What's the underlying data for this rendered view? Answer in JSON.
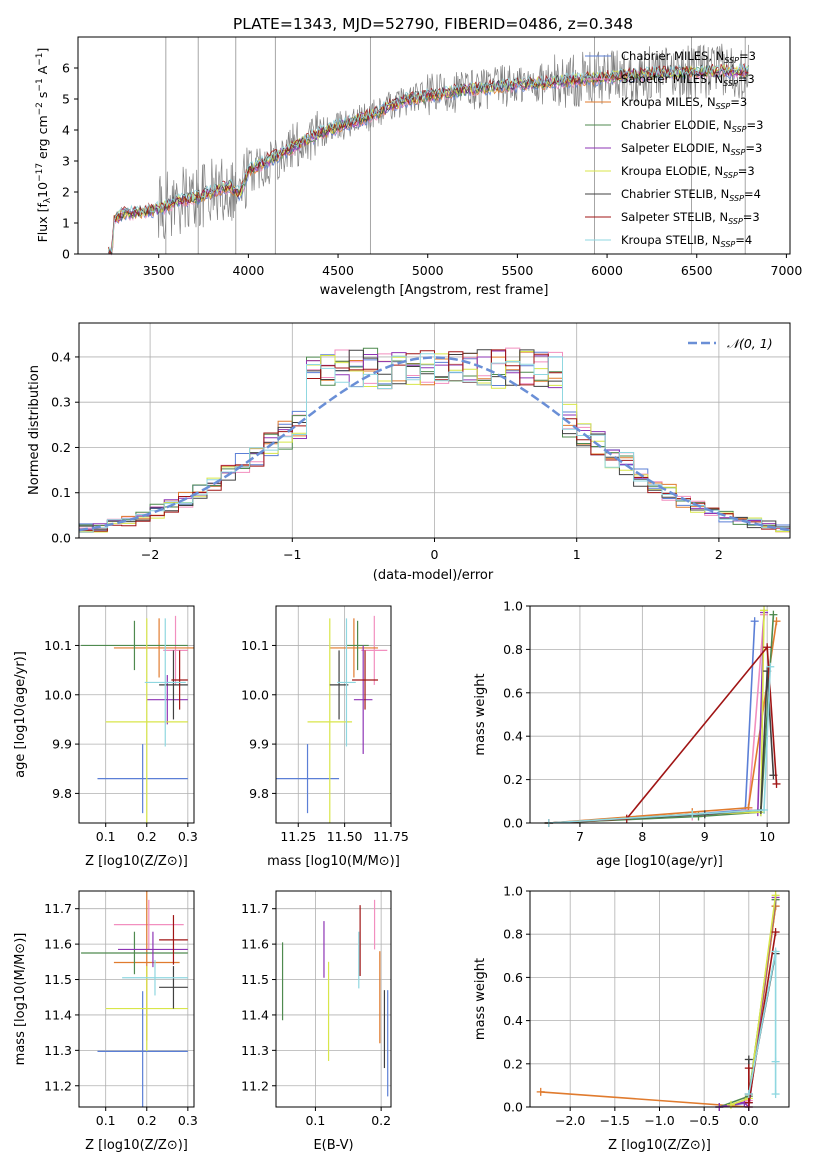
{
  "colors": {
    "chabrier_miles": "#5b7fd6",
    "salpeter_miles": "#f28fbf",
    "kroupa_miles": "#e07b2e",
    "chabrier_elodie": "#4f8a4f",
    "salpeter_elodie": "#8e35b5",
    "kroupa_elodie": "#d8e64a",
    "chabrier_stelib": "#404040",
    "salpeter_stelib": "#a01515",
    "kroupa_stelib": "#8fd7e0",
    "data": "#808080",
    "gauss": "#6a8fd6",
    "grid": "#b0b0b0"
  },
  "chart_data": [
    {
      "id": "spectrum",
      "type": "line",
      "title": "PLATE=1343, MJD=52790, FIBERID=0486, z=0.348",
      "xlabel": "wavelength [Angstrom, rest frame]",
      "ylabel": "Flux [fλ10⁻¹⁷ erg cm⁻² s⁻¹ A⁻¹]",
      "xlim": [
        3050,
        7020
      ],
      "ylim": [
        0,
        7.0
      ],
      "xticks": [
        3500,
        4000,
        4500,
        5000,
        5500,
        6000,
        6500,
        7000
      ],
      "yticks": [
        0,
        1,
        2,
        3,
        4,
        5,
        6
      ],
      "legend_position": "top-right",
      "legend": [
        "Chabrier MILES, NSSP=3",
        "Salpeter MILES, NSSP=3",
        "Kroupa MILES, NSSP=3",
        "Chabrier ELODIE, NSSP=3",
        "Salpeter ELODIE, NSSP=3",
        "Kroupa ELODIE, NSSP=3",
        "Chabrier STELIB, NSSP=4",
        "Salpeter STELIB, NSSP=3",
        "Kroupa STELIB, NSSP=4"
      ],
      "continuum": {
        "x": [
          3220,
          3240,
          3250,
          3300,
          3400,
          3500,
          3600,
          3700,
          3800,
          3900,
          3950,
          4000,
          4100,
          4200,
          4300,
          4400,
          4500,
          4600,
          4700,
          4800,
          4900,
          5000,
          5200,
          5400,
          5600,
          5800,
          6000,
          6200,
          6400,
          6600,
          6780
        ],
        "y": [
          0,
          0,
          1.1,
          1.3,
          1.35,
          1.45,
          1.7,
          1.8,
          2.0,
          2.2,
          1.9,
          2.7,
          3.0,
          3.3,
          3.6,
          3.9,
          4.1,
          4.3,
          4.5,
          4.8,
          5.0,
          5.1,
          5.3,
          5.4,
          5.5,
          5.6,
          5.7,
          5.8,
          5.85,
          5.9,
          5.9
        ]
      }
    },
    {
      "id": "residuals",
      "type": "line",
      "xlabel": "(data-model)/error",
      "ylabel": "Normed distribution",
      "xlim": [
        -2.5,
        2.5
      ],
      "ylim": [
        0,
        0.475
      ],
      "xticks": [
        -2,
        -1,
        0,
        1,
        2
      ],
      "yticks": [
        0.0,
        0.1,
        0.2,
        0.3,
        0.4
      ],
      "legend": [
        "𝒩(0, 1)"
      ],
      "legend_position": "top-right",
      "bin_width": 0.1,
      "bin_start": -2.5
    },
    {
      "id": "age_vs_Z",
      "type": "scatter",
      "xlabel": "Z [log10(Z/Z⊙)]",
      "ylabel": "age  [log10(age/yr)]",
      "xlim": [
        0.035,
        0.315
      ],
      "ylim": [
        9.74,
        10.18
      ],
      "xticks": [
        0.1,
        0.2,
        0.3
      ],
      "yticks": [
        9.8,
        9.9,
        10.0,
        10.1
      ],
      "ticklabels_x": [
        "0.1",
        "0.2",
        "0.3"
      ],
      "ticklabels_y": [
        "9.8",
        "9.9",
        "10.0",
        "10.1"
      ],
      "points": [
        {
          "series": "chabrier_miles",
          "x": 0.19,
          "y": 9.83,
          "xerr": 0.11,
          "yerr": 0.07
        },
        {
          "series": "salpeter_miles",
          "x": 0.27,
          "y": 10.09,
          "xerr": 0.03,
          "yerr": 0.07
        },
        {
          "series": "kroupa_miles",
          "x": 0.23,
          "y": 10.095,
          "xerr": 0.11,
          "yerr": 0.06
        },
        {
          "series": "chabrier_elodie",
          "x": 0.17,
          "y": 10.1,
          "xerr": 0.13,
          "yerr": 0.05
        },
        {
          "series": "salpeter_elodie",
          "x": 0.25,
          "y": 9.99,
          "xerr": 0.05,
          "yerr": 0.05
        },
        {
          "series": "kroupa_elodie",
          "x": 0.2,
          "y": 9.945,
          "xerr": 0.1,
          "yerr": 0.21
        },
        {
          "series": "chabrier_stelib",
          "x": 0.265,
          "y": 10.02,
          "xerr": 0.035,
          "yerr": 0.07
        },
        {
          "series": "salpeter_stelib",
          "x": 0.28,
          "y": 10.03,
          "xerr": 0.02,
          "yerr": 0.06
        },
        {
          "series": "kroupa_stelib",
          "x": 0.245,
          "y": 10.025,
          "xerr": 0.05,
          "yerr": 0.13
        }
      ]
    },
    {
      "id": "age_vs_mass",
      "type": "scatter",
      "xlabel": "mass [log10(M/M⊙)]",
      "xlim": [
        11.13,
        11.75
      ],
      "ylim": [
        9.74,
        10.18
      ],
      "xticks": [
        11.25,
        11.5,
        11.75
      ],
      "yticks": [
        9.8,
        9.9,
        10.0,
        10.1
      ],
      "ticklabels_x": [
        "11.25",
        "11.50",
        "11.75"
      ],
      "ticklabels_y": [
        "9.8",
        "9.9",
        "10.0",
        "10.1"
      ],
      "points": [
        {
          "series": "chabrier_miles",
          "x": 11.3,
          "y": 9.83,
          "xerr": 0.17,
          "yerr": 0.07
        },
        {
          "series": "salpeter_miles",
          "x": 11.66,
          "y": 10.09,
          "xerr": 0.07,
          "yerr": 0.07
        },
        {
          "series": "kroupa_miles",
          "x": 11.55,
          "y": 10.095,
          "xerr": 0.13,
          "yerr": 0.06
        },
        {
          "series": "chabrier_elodie",
          "x": 11.57,
          "y": 10.1,
          "xerr": 0.06,
          "yerr": 0.05
        },
        {
          "series": "salpeter_elodie",
          "x": 11.6,
          "y": 9.99,
          "xerr": 0.05,
          "yerr": 0.11
        },
        {
          "series": "kroupa_elodie",
          "x": 11.42,
          "y": 9.945,
          "xerr": 0.12,
          "yerr": 0.21
        },
        {
          "series": "chabrier_stelib",
          "x": 11.47,
          "y": 10.02,
          "xerr": 0.05,
          "yerr": 0.07
        },
        {
          "series": "salpeter_stelib",
          "x": 11.61,
          "y": 10.03,
          "xerr": 0.07,
          "yerr": 0.06
        },
        {
          "series": "kroupa_stelib",
          "x": 11.51,
          "y": 10.025,
          "xerr": 0.05,
          "yerr": 0.13
        }
      ]
    },
    {
      "id": "massweight_vs_age",
      "type": "line",
      "xlabel": "age  [log10(age/yr)]",
      "ylabel": "mass weight",
      "xlim": [
        6.2,
        10.35
      ],
      "ylim": [
        0,
        1.0
      ],
      "xticks": [
        7,
        8,
        9,
        10
      ],
      "yticks": [
        0.0,
        0.2,
        0.4,
        0.6,
        0.8,
        1.0
      ],
      "ticklabels_x": [
        "7",
        "8",
        "9",
        "10"
      ],
      "ticklabels_y": [
        "0.0",
        "0.2",
        "0.4",
        "0.6",
        "0.8",
        "1.0"
      ],
      "series": [
        {
          "key": "chabrier_miles",
          "x": [
            6.5,
            8.8,
            9.65,
            9.8
          ],
          "y": [
            0.0,
            0.04,
            0.06,
            0.93
          ]
        },
        {
          "key": "salpeter_miles",
          "x": [
            6.5,
            8.8,
            9.7,
            9.95
          ],
          "y": [
            0.0,
            0.03,
            0.06,
            0.96
          ]
        },
        {
          "key": "kroupa_miles",
          "x": [
            6.5,
            8.8,
            9.7,
            10.15
          ],
          "y": [
            0.0,
            0.05,
            0.07,
            0.93
          ]
        },
        {
          "key": "chabrier_elodie",
          "x": [
            6.5,
            8.9,
            9.9,
            10.1
          ],
          "y": [
            0.0,
            0.03,
            0.05,
            0.96
          ]
        },
        {
          "key": "salpeter_elodie",
          "x": [
            6.5,
            8.8,
            9.85,
            9.95
          ],
          "y": [
            0.0,
            0.04,
            0.05,
            0.97
          ]
        },
        {
          "key": "kroupa_elodie",
          "x": [
            6.5,
            8.8,
            9.9,
            9.95
          ],
          "y": [
            0.0,
            0.04,
            0.05,
            0.98
          ]
        },
        {
          "key": "chabrier_stelib",
          "x": [
            6.5,
            9.0,
            9.9,
            10.0,
            10.1
          ],
          "y": [
            0.0,
            0.04,
            0.06,
            0.7,
            0.22
          ]
        },
        {
          "key": "salpeter_stelib",
          "x": [
            6.5,
            7.75,
            10.0,
            10.15
          ],
          "y": [
            0.0,
            0.02,
            0.81,
            0.18
          ]
        },
        {
          "key": "kroupa_stelib",
          "x": [
            6.5,
            8.8,
            9.95,
            10.05
          ],
          "y": [
            0.0,
            0.04,
            0.06,
            0.72
          ]
        }
      ]
    },
    {
      "id": "mass_vs_Z",
      "type": "scatter",
      "xlabel": "Z [log10(Z/Z⊙)]",
      "ylabel": "mass [log10(M/M⊙)]",
      "xlim": [
        0.035,
        0.315
      ],
      "ylim": [
        11.14,
        11.75
      ],
      "xticks": [
        0.1,
        0.2,
        0.3
      ],
      "yticks": [
        11.2,
        11.3,
        11.4,
        11.5,
        11.6,
        11.7
      ],
      "ticklabels_x": [
        "0.1",
        "0.2",
        "0.3"
      ],
      "ticklabels_y": [
        "11.2",
        "11.3",
        "11.4",
        "11.5",
        "11.6",
        "11.7"
      ],
      "points": [
        {
          "series": "chabrier_miles",
          "x": 0.19,
          "y": 11.297,
          "xerr": 0.11,
          "yerr": 0.17
        },
        {
          "series": "salpeter_miles",
          "x": 0.205,
          "y": 11.655,
          "xerr": 0.085,
          "yerr": 0.07
        },
        {
          "series": "kroupa_miles",
          "x": 0.2,
          "y": 11.548,
          "xerr": 0.08,
          "yerr": 0.22
        },
        {
          "series": "chabrier_elodie",
          "x": 0.17,
          "y": 11.575,
          "xerr": 0.13,
          "yerr": 0.06
        },
        {
          "series": "salpeter_elodie",
          "x": 0.215,
          "y": 11.585,
          "xerr": 0.085,
          "yerr": 0.05
        },
        {
          "series": "kroupa_elodie",
          "x": 0.2,
          "y": 11.418,
          "xerr": 0.1,
          "yerr": 0.12
        },
        {
          "series": "chabrier_stelib",
          "x": 0.265,
          "y": 11.478,
          "xerr": 0.035,
          "yerr": 0.06
        },
        {
          "series": "salpeter_stelib",
          "x": 0.265,
          "y": 11.612,
          "xerr": 0.035,
          "yerr": 0.07
        },
        {
          "series": "kroupa_stelib",
          "x": 0.22,
          "y": 11.505,
          "xerr": 0.08,
          "yerr": 0.05
        }
      ]
    },
    {
      "id": "mass_vs_ebv",
      "type": "scatter",
      "xlabel": "E(B-V)",
      "xlim": [
        0.04,
        0.215
      ],
      "ylim": [
        11.14,
        11.75
      ],
      "xticks": [
        0.1,
        0.2
      ],
      "yticks": [
        11.2,
        11.3,
        11.4,
        11.5,
        11.6,
        11.7
      ],
      "ticklabels_x": [
        "0.1",
        "0.2"
      ],
      "ticklabels_y": [
        "11.2",
        "11.3",
        "11.4",
        "11.5",
        "11.6",
        "11.7"
      ],
      "points": [
        {
          "series": "chabrier_miles",
          "x": 0.21,
          "y": 11.32,
          "yerr": 0.15
        },
        {
          "series": "salpeter_miles",
          "x": 0.19,
          "y": 11.655,
          "yerr": 0.07
        },
        {
          "series": "kroupa_miles",
          "x": 0.198,
          "y": 11.45,
          "yerr": 0.13
        },
        {
          "series": "chabrier_elodie",
          "x": 0.05,
          "y": 11.495,
          "yerr": 0.11
        },
        {
          "series": "salpeter_elodie",
          "x": 0.113,
          "y": 11.585,
          "yerr": 0.08
        },
        {
          "series": "kroupa_elodie",
          "x": 0.12,
          "y": 11.41,
          "yerr": 0.14
        },
        {
          "series": "chabrier_stelib",
          "x": 0.205,
          "y": 11.36,
          "yerr": 0.11
        },
        {
          "series": "salpeter_stelib",
          "x": 0.168,
          "y": 11.61,
          "yerr": 0.1
        },
        {
          "series": "kroupa_stelib",
          "x": 0.166,
          "y": 11.555,
          "yerr": 0.08
        }
      ]
    },
    {
      "id": "massweight_vs_Z",
      "type": "line",
      "xlabel": "Z [log10(Z/Z⊙)]",
      "ylabel": "mass weight",
      "xlim": [
        -2.45,
        0.45
      ],
      "ylim": [
        0,
        1.0
      ],
      "xticks": [
        -2.0,
        -1.5,
        -1.0,
        -0.5,
        0.0
      ],
      "yticks": [
        0.0,
        0.2,
        0.4,
        0.6,
        0.8,
        1.0
      ],
      "ticklabels_x": [
        "−2.0",
        "−1.5",
        "−1.0",
        "−0.5",
        "0.0"
      ],
      "ticklabels_y": [
        "0.0",
        "0.2",
        "0.4",
        "0.6",
        "0.8",
        "1.0"
      ],
      "series": [
        {
          "key": "chabrier_miles",
          "x": [
            -0.33,
            0.0,
            0.3
          ],
          "y": [
            0.0,
            0.02,
            0.93
          ]
        },
        {
          "key": "salpeter_miles",
          "x": [
            -0.33,
            0.0,
            0.3
          ],
          "y": [
            0.0,
            0.03,
            0.96
          ]
        },
        {
          "key": "kroupa_miles",
          "x": [
            -2.33,
            0.0,
            0.3
          ],
          "y": [
            0.07,
            0.0,
            0.93
          ]
        },
        {
          "key": "chabrier_elodie",
          "x": [
            -0.33,
            0.0,
            0.3
          ],
          "y": [
            0.0,
            0.05,
            0.96
          ]
        },
        {
          "key": "salpeter_elodie",
          "x": [
            -0.33,
            -0.05,
            0.0,
            0.3
          ],
          "y": [
            0.0,
            0.02,
            0.0,
            0.97
          ]
        },
        {
          "key": "kroupa_elodie",
          "x": [
            -0.2,
            0.0,
            0.3
          ],
          "y": [
            0.01,
            0.04,
            0.98
          ]
        },
        {
          "key": "chabrier_stelib",
          "x": [
            0.0,
            0.0,
            0.3
          ],
          "y": [
            0.22,
            0.06,
            0.71
          ]
        },
        {
          "key": "salpeter_stelib",
          "x": [
            0.0,
            0.0,
            0.3
          ],
          "y": [
            0.18,
            0.02,
            0.81
          ]
        },
        {
          "key": "kroupa_stelib",
          "x": [
            0.0,
            0.3,
            0.3,
            0.3
          ],
          "y": [
            0.06,
            0.72,
            0.21,
            0.06
          ]
        }
      ]
    }
  ]
}
